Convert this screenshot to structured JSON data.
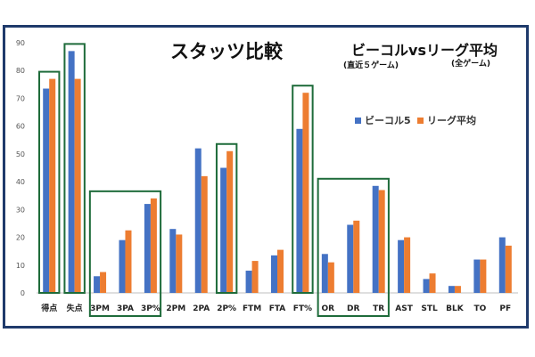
{
  "chart_data": {
    "type": "bar",
    "title": "スタッツ比較",
    "subtitle": "ビーコルvsリーグ平均",
    "subtitle_note_left": "(直近５ゲーム)",
    "subtitle_note_right": "(全ゲーム)",
    "categories": [
      "得点",
      "失点",
      "3PM",
      "3PA",
      "3P%",
      "2PM",
      "2PA",
      "2P%",
      "FTM",
      "FTA",
      "FT%",
      "OR",
      "DR",
      "TR",
      "AST",
      "STL",
      "BLK",
      "TO",
      "PF"
    ],
    "series": [
      {
        "name": "ビーコル5",
        "color": "#4472c4",
        "values": [
          73.5,
          87,
          6,
          19,
          32,
          23,
          52,
          45,
          8,
          13.5,
          59,
          14,
          24.5,
          38.5,
          19,
          5,
          2.5,
          12,
          20
        ]
      },
      {
        "name": "リーグ平均",
        "color": "#ed7d31",
        "values": [
          77,
          77,
          7.5,
          22.5,
          34,
          21,
          42,
          51,
          11.5,
          15.5,
          72,
          11,
          26,
          37,
          20,
          7,
          2.5,
          12,
          17
        ]
      }
    ],
    "ylim": [
      0,
      90
    ],
    "yticks": [
      0,
      10,
      20,
      30,
      40,
      50,
      60,
      70,
      80,
      90
    ],
    "grid": false,
    "legend_position": "right",
    "highlight_groups": [
      [
        "得点"
      ],
      [
        "失点"
      ],
      [
        "3PM",
        "3PA",
        "3P%"
      ],
      [
        "2P%"
      ],
      [
        "FT%"
      ],
      [
        "OR",
        "DR",
        "TR"
      ]
    ],
    "highlight_color": "#1e6b3a"
  }
}
